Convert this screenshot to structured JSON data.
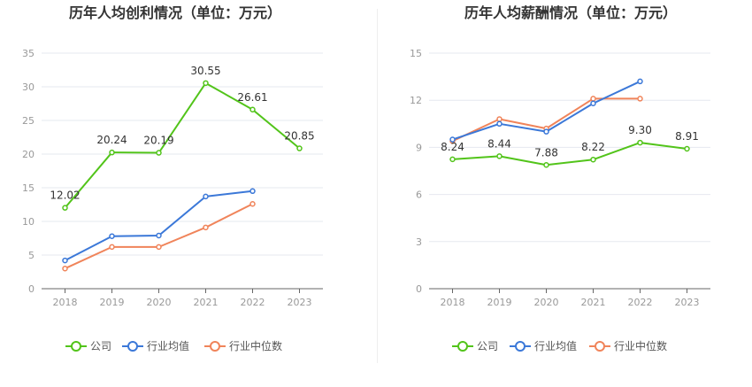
{
  "colors": {
    "company": "#52c41a",
    "industry_avg": "#3b78d8",
    "industry_median": "#f0845a",
    "grid": "#e6e8ef",
    "axis": "#666666"
  },
  "legend": {
    "company": "公司",
    "industry_avg": "行业均值",
    "industry_median": "行业中位数"
  },
  "chart_data": [
    {
      "type": "line",
      "title": "历年人均创利情况（单位：万元）",
      "categories": [
        "2018",
        "2019",
        "2020",
        "2021",
        "2022",
        "2023"
      ],
      "ylim": [
        0,
        35
      ],
      "yticks": [
        0,
        5,
        10,
        15,
        20,
        25,
        30,
        35
      ],
      "xlabel": "",
      "ylabel": "",
      "series": [
        {
          "key": "company",
          "name": "公司",
          "values": [
            12.02,
            20.24,
            20.19,
            30.55,
            26.61,
            20.85
          ],
          "labels": [
            "12.02",
            "20.24",
            "20.19",
            "30.55",
            "26.61",
            "20.85"
          ]
        },
        {
          "key": "industry_avg",
          "name": "行业均值",
          "values": [
            4.2,
            7.8,
            7.9,
            13.7,
            14.5,
            null
          ]
        },
        {
          "key": "industry_median",
          "name": "行业中位数",
          "values": [
            3.0,
            6.2,
            6.2,
            9.1,
            12.6,
            null
          ]
        }
      ]
    },
    {
      "type": "line",
      "title": "历年人均薪酬情况（单位：万元）",
      "categories": [
        "2018",
        "2019",
        "2020",
        "2021",
        "2022",
        "2023"
      ],
      "ylim": [
        0,
        15
      ],
      "yticks": [
        0,
        3,
        6,
        9,
        12,
        15
      ],
      "xlabel": "",
      "ylabel": "",
      "series": [
        {
          "key": "company",
          "name": "公司",
          "values": [
            8.24,
            8.44,
            7.88,
            8.22,
            9.3,
            8.91
          ],
          "labels": [
            "8.24",
            "8.44",
            "7.88",
            "8.22",
            "9.30",
            "8.91"
          ]
        },
        {
          "key": "industry_avg",
          "name": "行业均值",
          "values": [
            9.5,
            10.5,
            10.0,
            11.8,
            13.2,
            null
          ]
        },
        {
          "key": "industry_median",
          "name": "行业中位数",
          "values": [
            9.4,
            10.8,
            10.2,
            12.1,
            12.1,
            null
          ]
        }
      ]
    }
  ]
}
